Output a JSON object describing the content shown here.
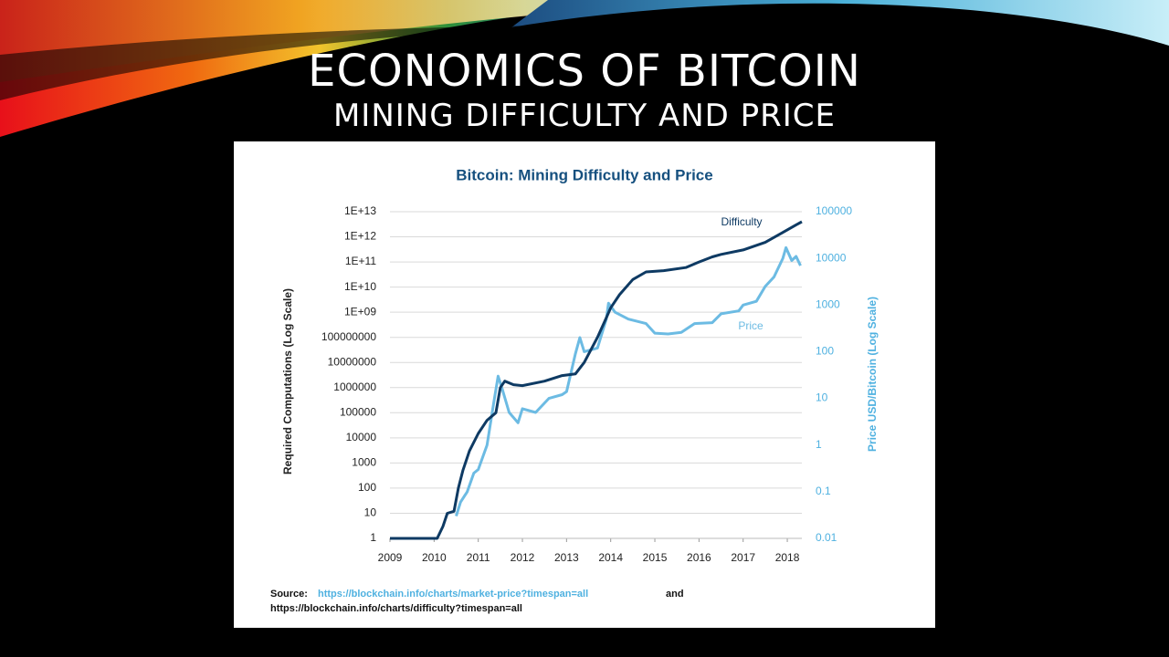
{
  "slide": {
    "title": "ECONOMICS OF BITCOIN",
    "subtitle": "MINING DIFFICULTY AND PRICE"
  },
  "chart_data": {
    "type": "line",
    "title": "Bitcoin: Mining Difficulty and Price",
    "ylabel": "Required Computations (Log Scale)",
    "y2label": "Price USD/Bitcoin (Log Scale)",
    "xlim": [
      2009,
      2018.33
    ],
    "xticks": [
      2009,
      2010,
      2011,
      2012,
      2013,
      2014,
      2015,
      2016,
      2017,
      2018
    ],
    "yscale": "log",
    "ylim": [
      1,
      10000000000000
    ],
    "yticks": [
      1,
      10,
      100,
      1000,
      10000,
      100000,
      1000000,
      10000000,
      100000000,
      {
        "value": 1000000000,
        "label": "1E+09"
      },
      {
        "value": 10000000000,
        "label": "1E+10"
      },
      {
        "value": 100000000000,
        "label": "1E+11"
      },
      {
        "value": 1000000000000,
        "label": "1E+12"
      },
      {
        "value": 10000000000000,
        "label": "1E+13"
      }
    ],
    "y2scale": "log",
    "y2lim": [
      0.01,
      100000
    ],
    "y2ticks": [
      0.01,
      0.1,
      1,
      10,
      100,
      1000,
      10000,
      100000
    ],
    "grid": true,
    "series": [
      {
        "name": "Difficulty",
        "color": "#0e3a63",
        "axis": "y",
        "x": [
          2009,
          2010.07,
          2010.2,
          2010.3,
          2010.45,
          2010.55,
          2010.65,
          2010.8,
          2011.0,
          2011.2,
          2011.4,
          2011.5,
          2011.6,
          2011.8,
          2012.0,
          2012.5,
          2012.9,
          2013.2,
          2013.4,
          2013.7,
          2013.9,
          2014.0,
          2014.2,
          2014.5,
          2014.8,
          2015.2,
          2015.7,
          2016.0,
          2016.3,
          2016.5,
          2017.0,
          2017.5,
          2017.9,
          2018.2,
          2018.33
        ],
        "values": [
          1,
          1,
          3,
          10,
          12,
          100,
          500,
          3000,
          15000,
          50000,
          100000,
          1000000,
          1800000,
          1300000,
          1200000,
          1800000,
          3000000,
          3500000,
          10000000,
          100000000,
          600000000,
          1500000000,
          5000000000,
          20000000000,
          40000000000,
          45000000000,
          60000000000,
          100000000000,
          160000000000,
          200000000000,
          300000000000,
          600000000000,
          1500000000000,
          3000000000000,
          4000000000000
        ]
      },
      {
        "name": "Price",
        "color": "#6cbbe3",
        "axis": "y2",
        "x": [
          2010.5,
          2010.6,
          2010.75,
          2010.9,
          2011.0,
          2011.2,
          2011.35,
          2011.45,
          2011.55,
          2011.7,
          2011.9,
          2012.0,
          2012.3,
          2012.6,
          2012.9,
          2013.0,
          2013.2,
          2013.3,
          2013.4,
          2013.7,
          2013.9,
          2013.95,
          2014.1,
          2014.4,
          2014.8,
          2015.0,
          2015.3,
          2015.6,
          2015.9,
          2016.3,
          2016.5,
          2016.9,
          2017.0,
          2017.3,
          2017.5,
          2017.7,
          2017.9,
          2017.97,
          2018.1,
          2018.2,
          2018.3
        ],
        "values": [
          0.03,
          0.06,
          0.1,
          0.25,
          0.3,
          1,
          8,
          30,
          15,
          5,
          3,
          6,
          5,
          10,
          12,
          14,
          90,
          200,
          100,
          120,
          500,
          1100,
          700,
          500,
          400,
          250,
          240,
          260,
          400,
          420,
          650,
          750,
          1000,
          1200,
          2500,
          4000,
          10000,
          17000,
          9000,
          11000,
          7000
        ]
      }
    ],
    "source": {
      "prefix": "Source:",
      "link1": "https://blockchain.info/charts/market-price?timespan=all",
      "connector": "and",
      "link2": "https://blockchain.info/charts/difficulty?timespan=all"
    }
  }
}
